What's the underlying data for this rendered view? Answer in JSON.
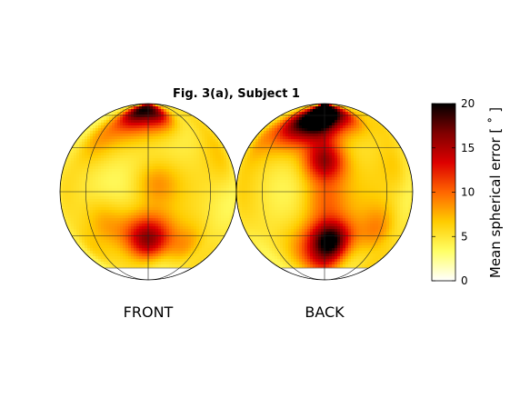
{
  "chart_data": {
    "type": "heatmap",
    "title": "Fig. 3(a), Subject 1",
    "colorbar": {
      "label": "Mean spherical error [ ˚ ]",
      "ticks": [
        0,
        5,
        10,
        15,
        20
      ],
      "range": [
        0,
        20
      ],
      "colormap": "hot (reversed)",
      "colors": [
        "#ffffff",
        "#ffff66",
        "#ffcc00",
        "#ff6600",
        "#dd0000",
        "#800000",
        "#000000"
      ]
    },
    "panels": [
      {
        "name": "FRONT",
        "background_level": 4.5,
        "hotspots": [
          {
            "lon": 0,
            "lat": 72,
            "value": 15,
            "spread": 18
          },
          {
            "lon": -20,
            "lat": 65,
            "value": 12,
            "spread": 14
          },
          {
            "lon": 15,
            "lat": 60,
            "value": 10,
            "spread": 12
          },
          {
            "lon": -45,
            "lat": 38,
            "value": 8,
            "spread": 14
          },
          {
            "lon": 5,
            "lat": 5,
            "value": 8,
            "spread": 10
          },
          {
            "lon": -30,
            "lat": -20,
            "value": 8,
            "spread": 12
          },
          {
            "lon": 0,
            "lat": -32,
            "value": 16,
            "spread": 12
          },
          {
            "lon": 30,
            "lat": -38,
            "value": 9,
            "spread": 12
          },
          {
            "lon": -55,
            "lat": -40,
            "value": 7,
            "spread": 12
          },
          {
            "lon": 60,
            "lat": 20,
            "value": 7,
            "spread": 14
          }
        ]
      },
      {
        "name": "BACK",
        "background_level": 5,
        "hotspots": [
          {
            "lon": 0,
            "lat": 75,
            "value": 20,
            "spread": 14
          },
          {
            "lon": -5,
            "lat": 55,
            "value": 19,
            "spread": 14
          },
          {
            "lon": 25,
            "lat": 62,
            "value": 14,
            "spread": 14
          },
          {
            "lon": -30,
            "lat": 52,
            "value": 14,
            "spread": 14
          },
          {
            "lon": -60,
            "lat": 40,
            "value": 9,
            "spread": 14
          },
          {
            "lon": 0,
            "lat": 20,
            "value": 15,
            "spread": 10
          },
          {
            "lon": 0,
            "lat": -5,
            "value": 9,
            "spread": 10
          },
          {
            "lon": 5,
            "lat": -32,
            "value": 15,
            "spread": 10
          },
          {
            "lon": 0,
            "lat": -45,
            "value": 14,
            "spread": 16
          },
          {
            "lon": 40,
            "lat": -25,
            "value": 9,
            "spread": 12
          },
          {
            "lon": 55,
            "lat": 15,
            "value": 7,
            "spread": 12
          }
        ]
      }
    ]
  }
}
